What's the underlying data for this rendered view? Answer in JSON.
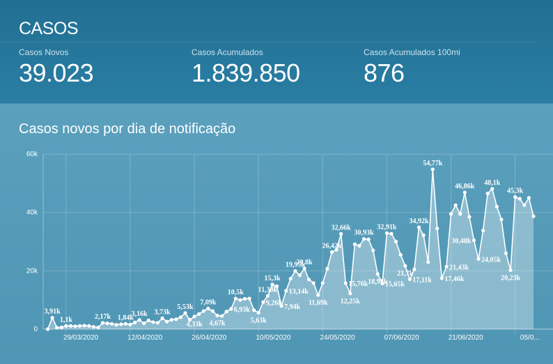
{
  "header": {
    "title": "CASOS"
  },
  "kpis": [
    {
      "label": "Casos Novos",
      "value": "39.023"
    },
    {
      "label": "Casos Acumulados",
      "value": "1.839.850"
    },
    {
      "label": "Casos Acumulados 100mi",
      "value": "876"
    }
  ],
  "chart_title": "Casos novos por dia de notificação",
  "colors": {
    "header_bg": "#226f93",
    "panel_bg": "#5a9ebb",
    "line": "#ffffff"
  },
  "chart_data": {
    "type": "area",
    "title": "Casos novos por dia de notificação",
    "xlabel": "",
    "ylabel": "",
    "ylim": [
      0,
      60000
    ],
    "y_ticks": [
      0,
      20000,
      40000,
      60000
    ],
    "y_tick_labels": [
      "0",
      "20k",
      "40k",
      "60k"
    ],
    "x_tick_labels": [
      "29/03/2020",
      "12/04/2020",
      "26/04/2020",
      "10/05/2020",
      "24/05/2020",
      "07/06/2020",
      "21/06/2020",
      "05/0..."
    ],
    "x_tick_index": [
      6,
      20,
      34,
      48,
      62,
      76,
      90,
      104
    ],
    "values": [
      0,
      3910,
      500,
      600,
      1100,
      1100,
      1000,
      1100,
      1200,
      1100,
      800,
      600,
      2170,
      2000,
      1800,
      1500,
      1700,
      1840,
      1600,
      2300,
      3160,
      2000,
      3000,
      2400,
      2200,
      3730,
      2600,
      3200,
      3400,
      4100,
      5530,
      3200,
      4330,
      5200,
      6200,
      7090,
      6200,
      4670,
      4500,
      6000,
      6930,
      10500,
      10000,
      10400,
      10500,
      6500,
      5630,
      9260,
      11380,
      15300,
      14700,
      7940,
      13140,
      17300,
      19950,
      18500,
      20800,
      17000,
      15800,
      11690,
      15800,
      20700,
      26420,
      27200,
      32660,
      15760,
      12250,
      29100,
      28600,
      30930,
      30800,
      27000,
      18910,
      15650,
      32910,
      32700,
      30000,
      25500,
      21700,
      17110,
      20500,
      34920,
      32200,
      23000,
      54770,
      34500,
      17460,
      21430,
      39500,
      42500,
      39500,
      46860,
      38500,
      30480,
      24050,
      33800,
      46500,
      48100,
      42000,
      37600,
      26000,
      20230,
      45300,
      44700,
      42500,
      45000,
      38700
    ],
    "data_labels": [
      {
        "i": 1,
        "text": "3,91k",
        "pos": "above"
      },
      {
        "i": 4,
        "text": "1,1k",
        "pos": "above"
      },
      {
        "i": 12,
        "text": "2,17k",
        "pos": "above"
      },
      {
        "i": 17,
        "text": "1,84k",
        "pos": "above"
      },
      {
        "i": 20,
        "text": "3,16k",
        "pos": "above"
      },
      {
        "i": 25,
        "text": "3,73k",
        "pos": "above"
      },
      {
        "i": 30,
        "text": "5,53k",
        "pos": "above"
      },
      {
        "i": 32,
        "text": "4,33k",
        "pos": "below"
      },
      {
        "i": 35,
        "text": "7,09k",
        "pos": "above"
      },
      {
        "i": 37,
        "text": "4,67k",
        "pos": "below"
      },
      {
        "i": 40,
        "text": "6,93k",
        "pos": "right"
      },
      {
        "i": 41,
        "text": "10,5k",
        "pos": "above"
      },
      {
        "i": 46,
        "text": "5,63k",
        "pos": "below"
      },
      {
        "i": 47,
        "text": "9,26k",
        "pos": "right"
      },
      {
        "i": 48,
        "text": "11,38k",
        "pos": "above"
      },
      {
        "i": 49,
        "text": "15,3k",
        "pos": "above"
      },
      {
        "i": 51,
        "text": "7,94k",
        "pos": "right"
      },
      {
        "i": 52,
        "text": "13,14k",
        "pos": "right"
      },
      {
        "i": 54,
        "text": "19,95k",
        "pos": "above"
      },
      {
        "i": 56,
        "text": "20,8k",
        "pos": "above"
      },
      {
        "i": 59,
        "text": "11,69k",
        "pos": "below"
      },
      {
        "i": 62,
        "text": "26,42k",
        "pos": "above"
      },
      {
        "i": 64,
        "text": "32,66k",
        "pos": "above"
      },
      {
        "i": 65,
        "text": "15,76k",
        "pos": "right"
      },
      {
        "i": 66,
        "text": "12,25k",
        "pos": "below"
      },
      {
        "i": 69,
        "text": "30,93k",
        "pos": "above"
      },
      {
        "i": 72,
        "text": "18,91k",
        "pos": "below"
      },
      {
        "i": 73,
        "text": "15,65k",
        "pos": "right"
      },
      {
        "i": 74,
        "text": "32,91k",
        "pos": "above"
      },
      {
        "i": 78,
        "text": "21,7k",
        "pos": "below"
      },
      {
        "i": 79,
        "text": "17,11k",
        "pos": "right"
      },
      {
        "i": 81,
        "text": "34,92k",
        "pos": "above"
      },
      {
        "i": 84,
        "text": "54,77k",
        "pos": "above"
      },
      {
        "i": 86,
        "text": "17,46k",
        "pos": "right"
      },
      {
        "i": 87,
        "text": "21,43k",
        "pos": "right"
      },
      {
        "i": 91,
        "text": "46,86k",
        "pos": "above"
      },
      {
        "i": 93,
        "text": "30,48k",
        "pos": "left"
      },
      {
        "i": 94,
        "text": "24,05k",
        "pos": "right"
      },
      {
        "i": 97,
        "text": "48,1k",
        "pos": "above"
      },
      {
        "i": 101,
        "text": "20,23k",
        "pos": "below"
      },
      {
        "i": 102,
        "text": "45,3k",
        "pos": "above"
      }
    ]
  }
}
